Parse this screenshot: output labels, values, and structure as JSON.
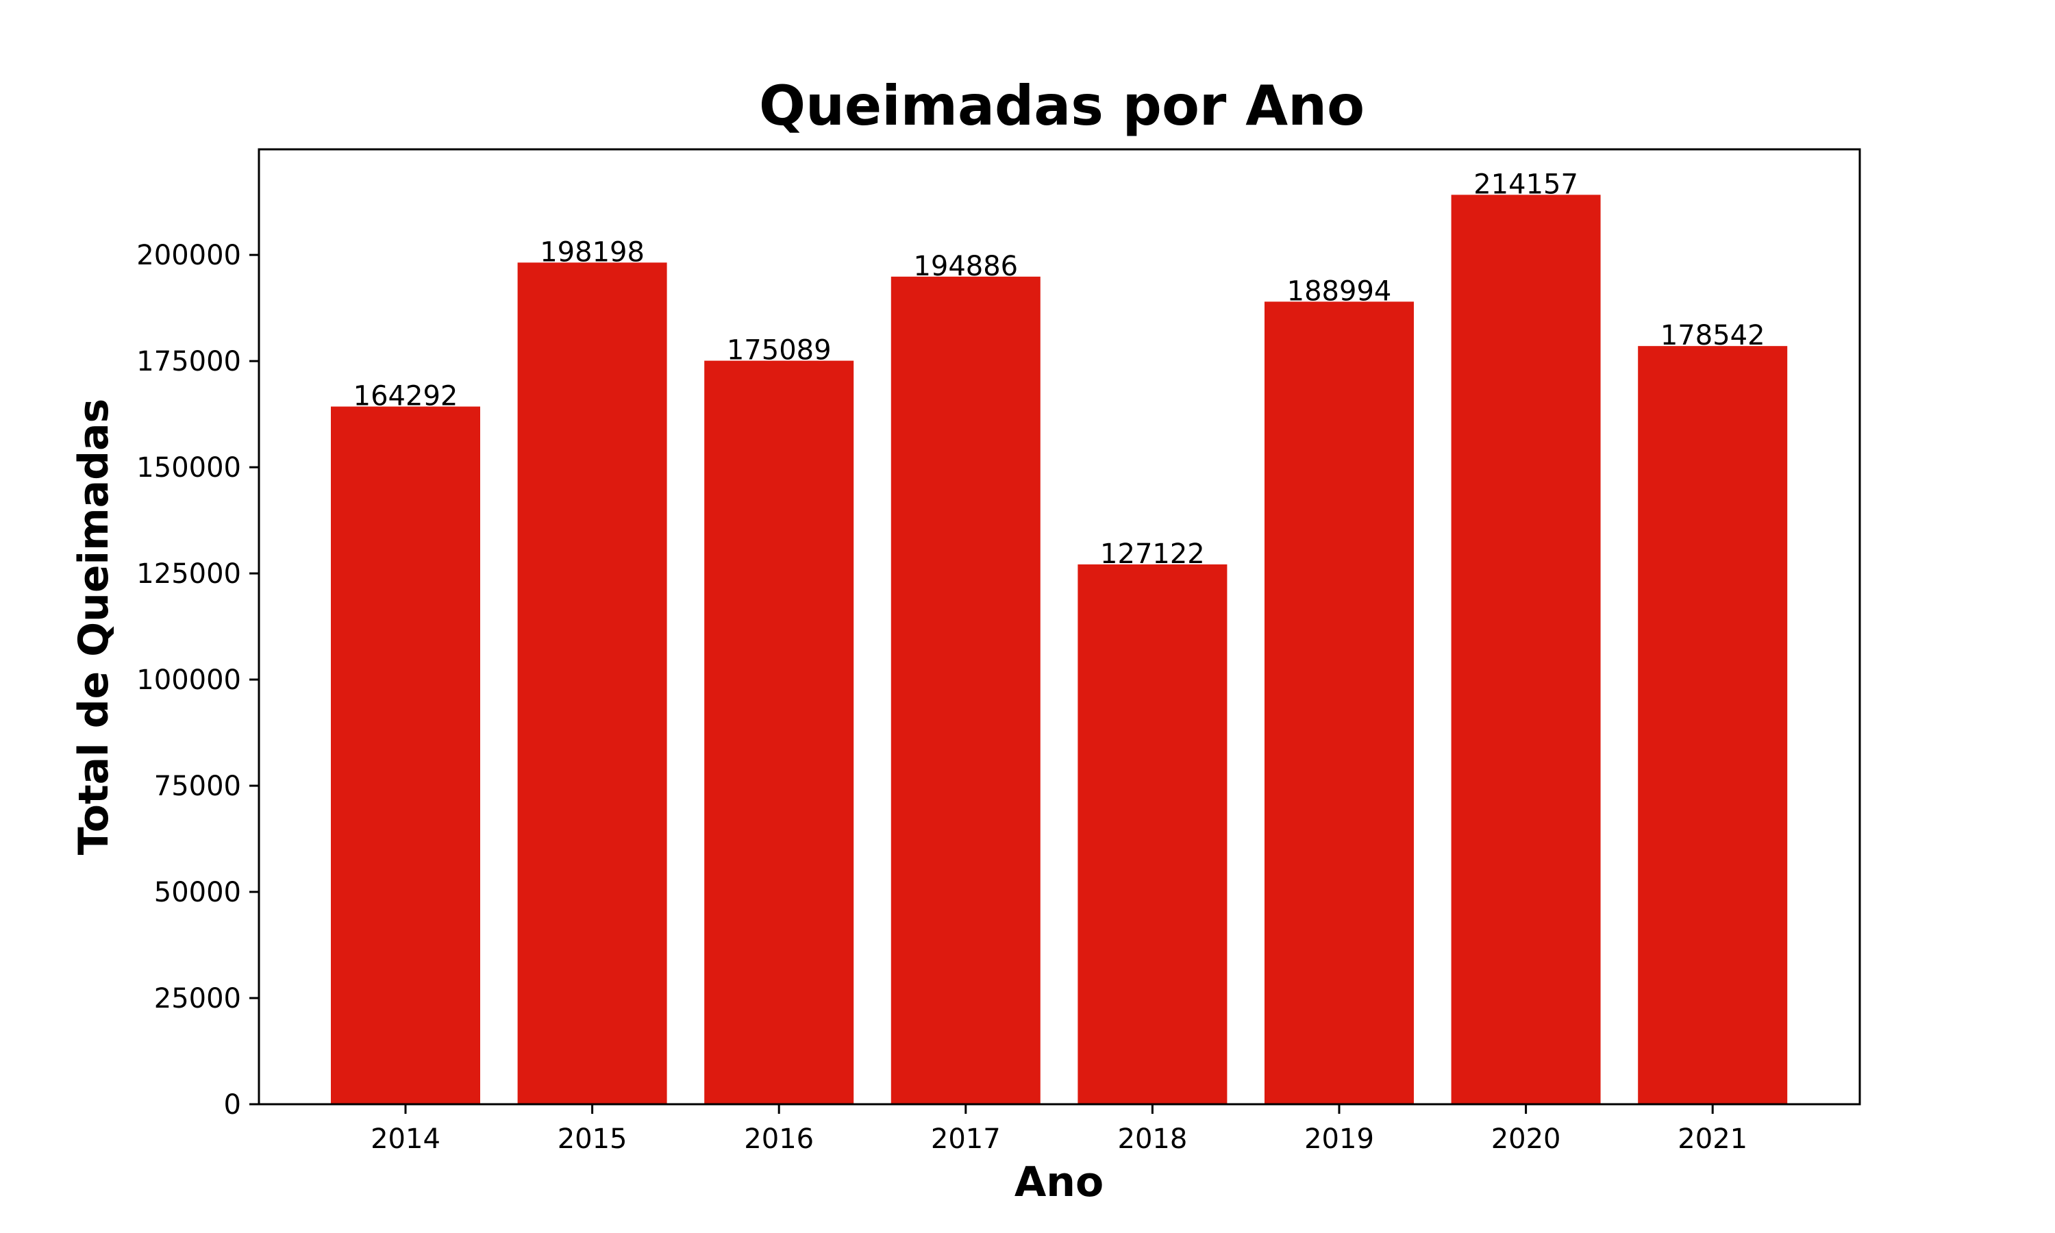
{
  "chart_data": {
    "type": "bar",
    "title": "Queimadas por Ano",
    "xlabel": "Ano",
    "ylabel": "Total de Queimadas",
    "categories": [
      "2014",
      "2015",
      "2016",
      "2017",
      "2018",
      "2019",
      "2020",
      "2021"
    ],
    "values": [
      164292,
      198198,
      175089,
      194886,
      127122,
      188994,
      214157,
      178542
    ],
    "data_labels": [
      "164292",
      "198198",
      "175089",
      "194886",
      "127122",
      "188994",
      "214157",
      "178542"
    ],
    "yticks": [
      0,
      25000,
      50000,
      75000,
      100000,
      125000,
      150000,
      175000,
      200000
    ],
    "ytick_labels": [
      "0",
      "25000",
      "50000",
      "75000",
      "100000",
      "125000",
      "150000",
      "175000",
      "200000"
    ],
    "ylim": [
      0,
      224865
    ],
    "grid": false,
    "legend": "none",
    "bar_color": "#dd1a0f"
  }
}
